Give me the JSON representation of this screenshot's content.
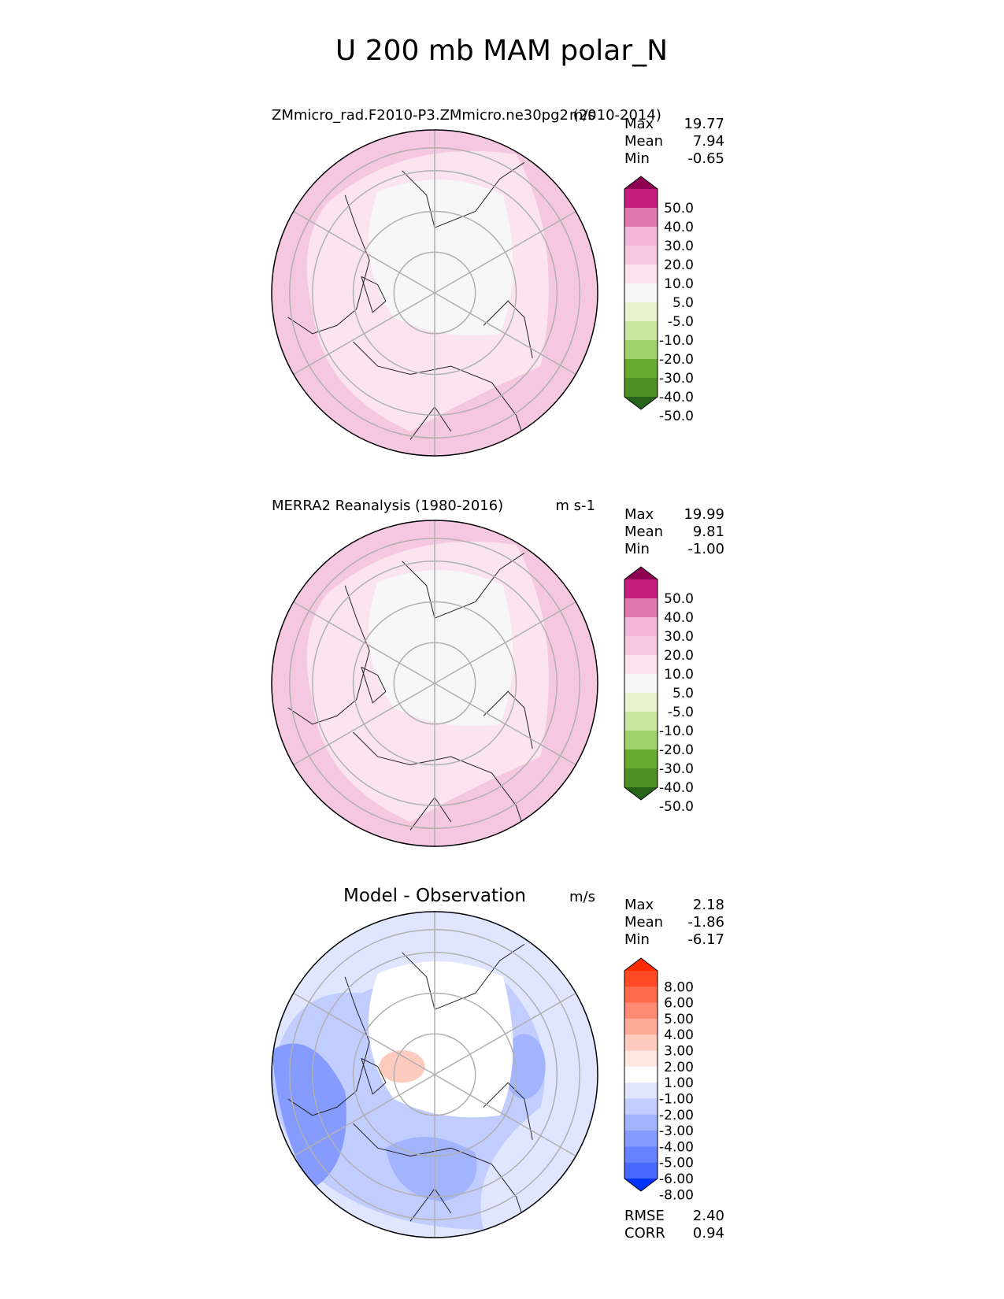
{
  "figure": {
    "title": "U 200 mb MAM polar_N"
  },
  "chart_data": [
    {
      "type": "heatmap",
      "projection": "north-polar-stereographic",
      "title": "ZMmicro_rad.F2010-P3.ZMmicro.ne30pg2 (2010-2014)",
      "units": "m/s",
      "stats": {
        "max": "19.77",
        "mean": "7.94",
        "min": "-0.65"
      },
      "stat_labels": [
        "Max",
        "Mean",
        "Min"
      ],
      "colorbar": {
        "levels": [
          "50.0",
          "40.0",
          "30.0",
          "20.0",
          "10.0",
          "5.0",
          "-5.0",
          "-10.0",
          "-20.0",
          "-30.0",
          "-40.0",
          "-50.0"
        ],
        "colors": [
          "#8e0152",
          "#c51b7d",
          "#de77ae",
          "#f1b6da",
          "#f5c7e1",
          "#fbe4ef",
          "#f7f7f7",
          "#e6f5d0",
          "#c8e8a0",
          "#9fd26a",
          "#6aaa2e",
          "#4d8f22",
          "#276419"
        ]
      },
      "regions": [
        {
          "name": "outer-ring",
          "level_index": 4
        },
        {
          "name": "mid-ring",
          "level_index": 5
        },
        {
          "name": "polar-cap",
          "level_index": 6
        }
      ]
    },
    {
      "type": "heatmap",
      "projection": "north-polar-stereographic",
      "title": "MERRA2 Reanalysis (1980-2016)",
      "units": "m s-1",
      "stats": {
        "max": "19.99",
        "mean": "9.81",
        "min": "-1.00"
      },
      "stat_labels": [
        "Max",
        "Mean",
        "Min"
      ],
      "colorbar": {
        "levels": [
          "50.0",
          "40.0",
          "30.0",
          "20.0",
          "10.0",
          "5.0",
          "-5.0",
          "-10.0",
          "-20.0",
          "-30.0",
          "-40.0",
          "-50.0"
        ],
        "colors": [
          "#8e0152",
          "#c51b7d",
          "#de77ae",
          "#f1b6da",
          "#f5c7e1",
          "#fbe4ef",
          "#f7f7f7",
          "#e6f5d0",
          "#c8e8a0",
          "#9fd26a",
          "#6aaa2e",
          "#4d8f22",
          "#276419"
        ]
      },
      "regions": [
        {
          "name": "outer-ring",
          "level_index": 4
        },
        {
          "name": "mid-ring",
          "level_index": 5
        },
        {
          "name": "polar-cap",
          "level_index": 6
        }
      ]
    },
    {
      "type": "heatmap",
      "projection": "north-polar-stereographic",
      "title": "Model - Observation",
      "units": "m/s",
      "stats": {
        "max": "2.18",
        "mean": "-1.86",
        "min": "-6.17"
      },
      "stat_labels": [
        "Max",
        "Mean",
        "Min"
      ],
      "colorbar": {
        "levels": [
          "8.00",
          "6.00",
          "5.00",
          "4.00",
          "3.00",
          "2.00",
          "1.00",
          "-1.00",
          "-2.00",
          "-3.00",
          "-4.00",
          "-5.00",
          "-6.00",
          "-8.00"
        ],
        "colors": [
          "#ff2a00",
          "#ff4a26",
          "#ff6a4d",
          "#ff8a73",
          "#ffab99",
          "#ffcbbf",
          "#ffe6e0",
          "#ffffff",
          "#e0e6ff",
          "#c2cdff",
          "#a3b4ff",
          "#859bff",
          "#6682ff",
          "#4769ff",
          "#0033ff"
        ]
      },
      "regions": [
        {
          "name": "outer-band",
          "level_index": 8
        },
        {
          "name": "mid-band",
          "level_index": 9
        },
        {
          "name": "atlantic-sector",
          "level_index": 11
        },
        {
          "name": "eurasia-blob",
          "level_index": 10
        },
        {
          "name": "polar-cap",
          "level_index": 7
        },
        {
          "name": "positive-spot",
          "level_index": 5
        }
      ],
      "metrics": [
        {
          "label": "RMSE",
          "value": "2.40"
        },
        {
          "label": "CORR",
          "value": "0.94"
        }
      ]
    }
  ]
}
